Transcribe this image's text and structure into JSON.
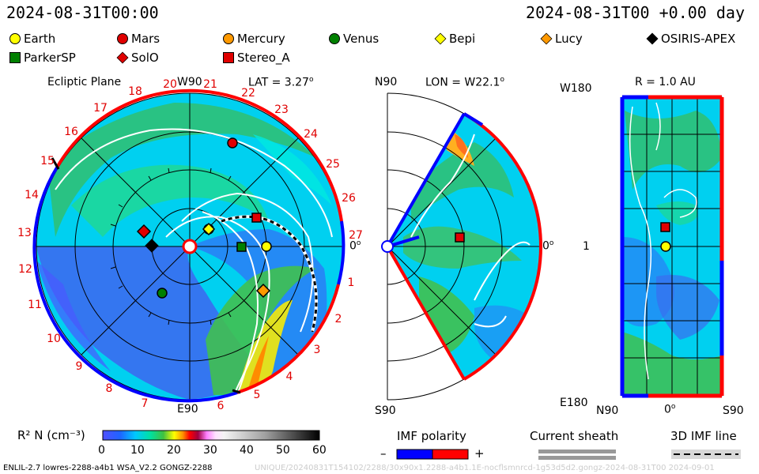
{
  "header": {
    "left_time": "2024-08-31T00:00",
    "right_time": "2024-08-31T00 +0.00 day"
  },
  "legend": [
    {
      "label": "Earth",
      "shape": "circle",
      "color": "#ffff00"
    },
    {
      "label": "Mars",
      "shape": "circle",
      "color": "#e00000"
    },
    {
      "label": "Mercury",
      "shape": "circle",
      "color": "#ff9900"
    },
    {
      "label": "Venus",
      "shape": "circle",
      "color": "#008000"
    },
    {
      "label": "Bepi",
      "shape": "diamond",
      "color": "#ffff00"
    },
    {
      "label": "Lucy",
      "shape": "diamond",
      "color": "#ff9900"
    },
    {
      "label": "OSIRIS-APEX",
      "shape": "diamond",
      "color": "#000000"
    },
    {
      "label": "ParkerSP",
      "shape": "square",
      "color": "#008000"
    },
    {
      "label": "SolO",
      "shape": "diamond",
      "color": "#e00000"
    },
    {
      "label": "Stereo_A",
      "shape": "square",
      "color": "#e00000"
    }
  ],
  "ecliptic": {
    "title": "Ecliptic Plane",
    "top_label": "W90",
    "bottom_label": "E90",
    "right_label": "0",
    "lat_label": "LAT = 3.27",
    "carrington": [
      "20",
      "21",
      "22",
      "23",
      "24",
      "25",
      "26",
      "27",
      "1",
      "2",
      "3",
      "4",
      "5",
      "6",
      "7",
      "8",
      "9",
      "10",
      "11",
      "12",
      "13",
      "14",
      "15",
      "16",
      "17",
      "18",
      "19"
    ]
  },
  "meridional": {
    "top_label": "N90",
    "bottom_label": "S90",
    "lon_label": "LON = W22.1",
    "right_label": "0"
  },
  "radial": {
    "r_label": "R = 1.0 AU",
    "top_left": "W180",
    "bottom_left": "E180",
    "mid_left": "1",
    "bottom_left_axis": "N90",
    "bottom_mid": "0",
    "bottom_right": "S90"
  },
  "colorbar": {
    "label": "R² N (cm⁻³)",
    "ticks": [
      "0",
      "10",
      "20",
      "30",
      "40",
      "50",
      "60"
    ]
  },
  "imf": {
    "title": "IMF polarity",
    "minus": "–",
    "plus": "+",
    "neg_color": "#0000ff",
    "pos_color": "#ff0000"
  },
  "sheath": {
    "title": "Current sheath"
  },
  "imf3d": {
    "title": "3D IMF line"
  },
  "footer": {
    "model": "ENLIL-2.7 lowres-2288-a4b1 WSA_V2.2 GONGZ-2288",
    "run": "UNIQUE/20240831T154102/2288/30x90x1.2288-a4b1.1E-nocflsmnrcd-1g53d5d2.gongz-2024-08-31T00 2024-09-01"
  }
}
